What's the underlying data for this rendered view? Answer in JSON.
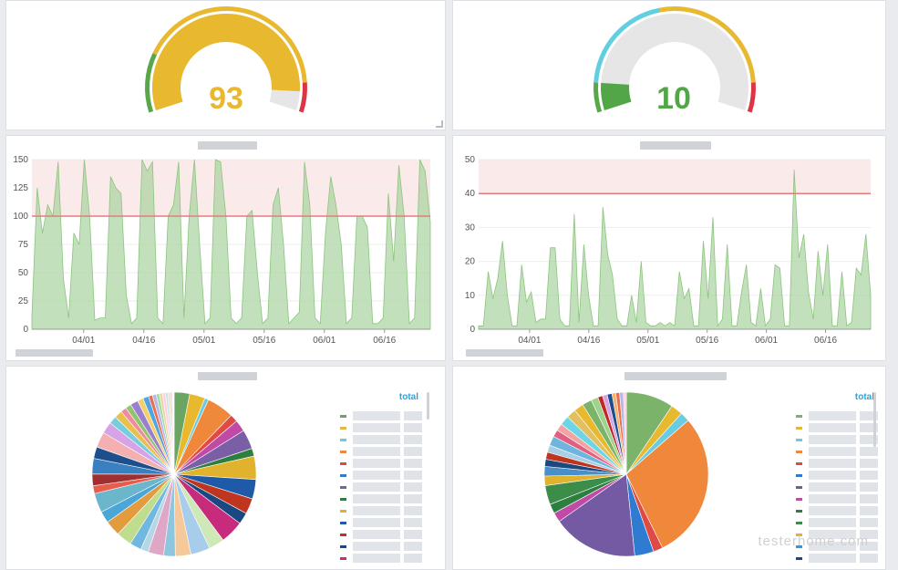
{
  "gauges": [
    {
      "value": "93",
      "value_num": 93,
      "color": "#e8b82f",
      "segments": [
        {
          "to": 0.2,
          "color": "#58a84a"
        },
        {
          "to": 0.7,
          "color": "#e8b82f"
        },
        {
          "to": 0.9,
          "color": "#e8b82f"
        },
        {
          "to": 1.0,
          "color": "#dc3545"
        }
      ]
    },
    {
      "value": "10",
      "value_num": 10,
      "color": "#52a647",
      "segments": [
        {
          "to": 0.1,
          "color": "#58a84a"
        },
        {
          "to": 0.45,
          "color": "#62cfe0"
        },
        {
          "to": 0.9,
          "color": "#e8b82f"
        },
        {
          "to": 1.0,
          "color": "#dc3545"
        }
      ]
    }
  ],
  "chart_data": [
    {
      "type": "area",
      "ylim": [
        0,
        150
      ],
      "yticks": [
        "0",
        "25",
        "50",
        "75",
        "100",
        "125",
        "150"
      ],
      "xticks": [
        "04/01",
        "04/16",
        "05/01",
        "05/16",
        "06/01",
        "06/16"
      ],
      "threshold": 100,
      "band": [
        100,
        150
      ],
      "values": [
        12,
        125,
        85,
        110,
        100,
        148,
        45,
        10,
        85,
        75,
        150,
        100,
        8,
        10,
        10,
        135,
        125,
        120,
        30,
        5,
        10,
        150,
        140,
        148,
        10,
        5,
        100,
        110,
        148,
        10,
        100,
        150,
        75,
        5,
        10,
        150,
        148,
        100,
        10,
        5,
        10,
        100,
        105,
        50,
        5,
        10,
        110,
        125,
        75,
        5,
        10,
        15,
        148,
        110,
        10,
        5,
        85,
        135,
        110,
        75,
        5,
        10,
        100,
        100,
        90,
        5,
        5,
        10,
        120,
        60,
        145,
        100,
        5,
        10,
        150,
        140,
        95
      ],
      "color": "#a8d39e",
      "band_color": "#fbeaea",
      "line_color": "#e27c7c"
    },
    {
      "type": "area",
      "ylim": [
        0,
        50
      ],
      "yticks": [
        "0",
        "10",
        "20",
        "30",
        "40",
        "50"
      ],
      "xticks": [
        "04/01",
        "04/16",
        "05/01",
        "05/16",
        "06/01",
        "06/16"
      ],
      "threshold": 40,
      "band": [
        40,
        50
      ],
      "values": [
        1,
        1,
        17,
        9,
        15,
        26,
        10,
        1,
        1,
        19,
        8,
        11,
        2,
        3,
        3,
        24,
        24,
        3,
        1,
        1,
        34,
        2,
        25,
        10,
        1,
        1,
        36,
        22,
        16,
        3,
        1,
        1,
        10,
        2,
        20,
        2,
        1,
        1,
        2,
        1,
        2,
        1,
        17,
        9,
        12,
        1,
        1,
        26,
        9,
        33,
        1,
        3,
        25,
        1,
        1,
        11,
        19,
        2,
        1,
        12,
        1,
        3,
        19,
        18,
        1,
        1,
        47,
        21,
        28,
        11,
        3,
        23,
        10,
        25,
        1,
        1,
        17,
        1,
        2,
        18,
        16,
        28,
        10
      ],
      "color": "#a8d39e",
      "band_color": "#fbeaea",
      "line_color": "#e27c7c"
    },
    {
      "type": "pie",
      "values": [
        4,
        4,
        1,
        7,
        2,
        3,
        5,
        2,
        6,
        5,
        4,
        3,
        6,
        4,
        5,
        4,
        3,
        4,
        2,
        3,
        4,
        4,
        3,
        5,
        2,
        3,
        4,
        3,
        4,
        3,
        2,
        2,
        1.5,
        1.5,
        2,
        1.5,
        1.5,
        1,
        1,
        0.8,
        0.8,
        0.8,
        0.6,
        0.6,
        0.5,
        0.5
      ],
      "colors": [
        "#6ba563",
        "#e8b82f",
        "#6acce0",
        "#f0883b",
        "#e04a44",
        "#c04aa6",
        "#7a5ea6",
        "#2d7f3f",
        "#e0b22e",
        "#1e5aa8",
        "#c0351e",
        "#1b4880",
        "#c72b7b",
        "#cfe8b7",
        "#a8cdea",
        "#f6c99b",
        "#8ec6df",
        "#e0a6c6",
        "#b6d6e6",
        "#70b8e0",
        "#c0dd8e",
        "#e39c3d",
        "#4ba6d8",
        "#6cb6cc",
        "#e85c4a",
        "#a02f2f",
        "#3a7fbf",
        "#1c4f8c",
        "#f4b0b0",
        "#d6a3e6",
        "#77ccdd",
        "#e8c14d",
        "#f08aa0",
        "#91c46c",
        "#9a7fd1",
        "#f2d16b",
        "#53a3e0",
        "#e76f51",
        "#b8b8e8",
        "#a0dca0",
        "#e8d8a0",
        "#ffd0e0",
        "#c8e0f0",
        "#f0e0c0",
        "#d8d8d8",
        "#ffffff"
      ]
    },
    {
      "type": "pie",
      "values": [
        10,
        2.5,
        2,
        31,
        2,
        4,
        18,
        2,
        2,
        4,
        2,
        2,
        1.5,
        1.5,
        1.5,
        2,
        1.5,
        1.5,
        2,
        2,
        2,
        2,
        1.5,
        1,
        1,
        1,
        0.8,
        0.8,
        0.8,
        0.6
      ],
      "colors": [
        "#7cb36a",
        "#e8b82f",
        "#6acce0",
        "#f0883b",
        "#e04a44",
        "#2f7bd1",
        "#735aa3",
        "#c04aa6",
        "#2d7f3f",
        "#3c8c4a",
        "#e0b22e",
        "#4a90c8",
        "#1b4880",
        "#c0351e",
        "#a9cfe6",
        "#6db5dd",
        "#e06080",
        "#f4a3a3",
        "#6dd6e6",
        "#e0c060",
        "#e8b82f",
        "#7cb36a",
        "#9fd28c",
        "#c02828",
        "#d6a3e6",
        "#1c4f8c",
        "#f7b26a",
        "#e76f51",
        "#b8b8e8",
        "#ffd0e0"
      ]
    }
  ],
  "legend_left": {
    "header": "total",
    "swatches": [
      "#6ba563",
      "#e8b82f",
      "#6acce0",
      "#f0883b",
      "#e04a44",
      "#2f7bd1",
      "#7a5ea6",
      "#2d7f3f",
      "#e0b22e",
      "#1e5aa8",
      "#c0351e",
      "#1b4880",
      "#c72b7b"
    ]
  },
  "legend_right": {
    "header": "total",
    "swatches": [
      "#7cb36a",
      "#e8b82f",
      "#6acce0",
      "#f0883b",
      "#e04a44",
      "#2f7bd1",
      "#735aa3",
      "#c04aa6",
      "#2d7f3f",
      "#3c8c4a",
      "#e0b22e",
      "#4a90c8",
      "#1b4880"
    ]
  },
  "watermark": "testerhome.com"
}
